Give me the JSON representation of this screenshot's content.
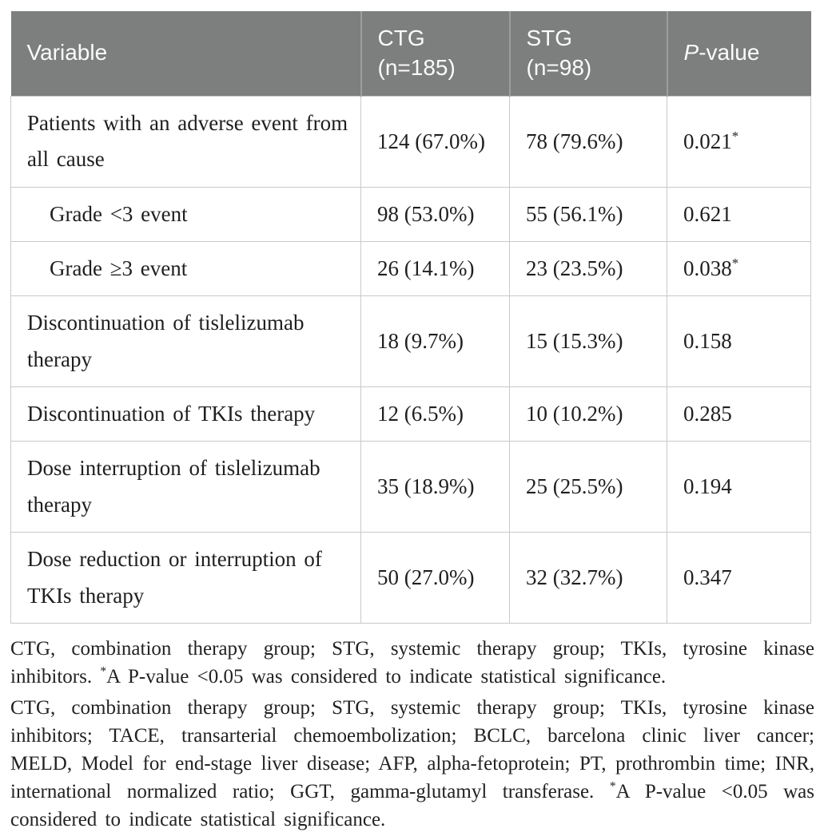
{
  "table": {
    "columns": [
      {
        "label": "Variable"
      },
      {
        "label": "CTG",
        "sub": "(n=185)"
      },
      {
        "label": "STG",
        "sub": "(n=98)"
      },
      {
        "italic": "P",
        "rest": "-value"
      }
    ],
    "rows": [
      {
        "variable": "Patients with an adverse event from all cause",
        "indent": false,
        "ctg": "124 (67.0%)",
        "stg": "78 (79.6%)",
        "p": "0.021",
        "star": "*"
      },
      {
        "variable": "Grade <3 event",
        "indent": true,
        "ctg": "98 (53.0%)",
        "stg": "55 (56.1%)",
        "p": "0.621",
        "star": ""
      },
      {
        "variable": "Grade ≥3 event",
        "indent": true,
        "ctg": "26 (14.1%)",
        "stg": "23 (23.5%)",
        "p": "0.038",
        "star": "*"
      },
      {
        "variable": "Discontinuation of tislelizumab therapy",
        "indent": false,
        "ctg": "18 (9.7%)",
        "stg": "15 (15.3%)",
        "p": "0.158",
        "star": ""
      },
      {
        "variable": "Discontinuation of TKIs therapy",
        "indent": false,
        "ctg": "12 (6.5%)",
        "stg": "10 (10.2%)",
        "p": "0.285",
        "star": ""
      },
      {
        "variable": "Dose interruption of tislelizumab therapy",
        "indent": false,
        "ctg": "35 (18.9%)",
        "stg": "25 (25.5%)",
        "p": "0.194",
        "star": ""
      },
      {
        "variable": "Dose reduction or interruption of TKIs therapy",
        "indent": false,
        "ctg": "50 (27.0%)",
        "stg": "32 (32.7%)",
        "p": "0.347",
        "star": ""
      }
    ]
  },
  "footnotes": [
    {
      "text": "CTG, combination therapy group; STG, systemic therapy group; TKIs, tyrosine kinase inhibitors. ",
      "star": "*",
      "after": "A P-value <0.05 was considered to indicate statistical significance."
    },
    {
      "text": "CTG, combination therapy group; STG, systemic therapy group; TKIs, tyrosine kinase inhibitors; TACE, transarterial chemoembolization; BCLC, barcelona clinic liver cancer; MELD, Model for end-stage liver disease; AFP, alpha-fetoprotein; PT, prothrombin time; INR, international normalized ratio; GGT, gamma-glutamyl transferase. ",
      "star": "*",
      "after": "A P-value <0.05 was considered to indicate statistical significance."
    }
  ],
  "colors": {
    "header_bg": "#7d7e7e",
    "header_text": "#fbfbfb",
    "header_separator": "#9c9d9d",
    "body_border": "#c9c9c9",
    "body_text": "#1f1f1f"
  }
}
